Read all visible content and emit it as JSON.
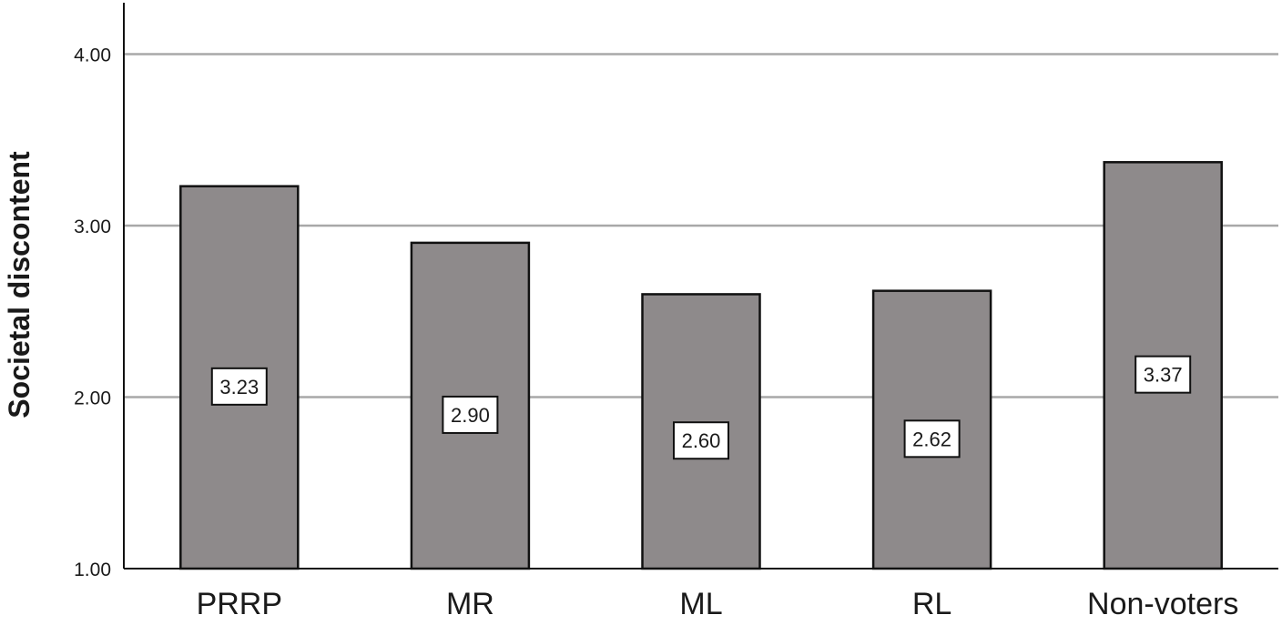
{
  "chart_data": {
    "type": "bar",
    "title": "",
    "xlabel": "",
    "ylabel": "Societal discontent",
    "categories": [
      "PRRP",
      "MR",
      "ML",
      "RL",
      "Non-voters"
    ],
    "values": [
      3.23,
      2.9,
      2.6,
      2.62,
      3.37
    ],
    "data_labels": [
      "3.23",
      "2.90",
      "2.60",
      "2.62",
      "3.37"
    ],
    "ylim": [
      1.0,
      4.3
    ],
    "yticks": [
      1.0,
      2.0,
      3.0,
      4.0
    ],
    "ytick_labels": [
      "1.00",
      "2.00",
      "3.00",
      "4.00"
    ],
    "grid": true,
    "legend": "none",
    "colors": {
      "bar_fill": "#8e8a8b",
      "bar_stroke": "#111111",
      "grid": "#a8a8a8",
      "axis": "#111111"
    }
  }
}
